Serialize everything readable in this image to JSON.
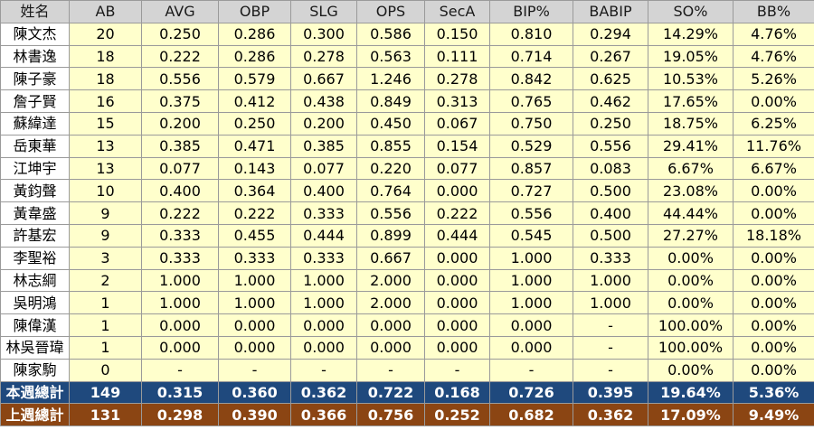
{
  "columns": [
    "姓名",
    "AB",
    "AVG",
    "OBP",
    "SLG",
    "OPS",
    "SecA",
    "BIP%",
    "BABIP",
    "SO%",
    "BB%"
  ],
  "rows": [
    [
      "陳文杰",
      "20",
      "0.250",
      "0.286",
      "0.300",
      "0.586",
      "0.150",
      "0.810",
      "0.294",
      "14.29%",
      "4.76%"
    ],
    [
      "林書逸",
      "18",
      "0.222",
      "0.286",
      "0.278",
      "0.563",
      "0.111",
      "0.714",
      "0.267",
      "19.05%",
      "4.76%"
    ],
    [
      "陳子豪",
      "18",
      "0.556",
      "0.579",
      "0.667",
      "1.246",
      "0.278",
      "0.842",
      "0.625",
      "10.53%",
      "5.26%"
    ],
    [
      "詹子賢",
      "16",
      "0.375",
      "0.412",
      "0.438",
      "0.849",
      "0.313",
      "0.765",
      "0.462",
      "17.65%",
      "0.00%"
    ],
    [
      "蘇緯達",
      "15",
      "0.200",
      "0.250",
      "0.200",
      "0.450",
      "0.067",
      "0.750",
      "0.250",
      "18.75%",
      "6.25%"
    ],
    [
      "岳東華",
      "13",
      "0.385",
      "0.471",
      "0.385",
      "0.855",
      "0.154",
      "0.529",
      "0.556",
      "29.41%",
      "11.76%"
    ],
    [
      "江坤宇",
      "13",
      "0.077",
      "0.143",
      "0.077",
      "0.220",
      "0.077",
      "0.857",
      "0.083",
      "6.67%",
      "6.67%"
    ],
    [
      "黃鈞聲",
      "10",
      "0.400",
      "0.364",
      "0.400",
      "0.764",
      "0.000",
      "0.727",
      "0.500",
      "23.08%",
      "0.00%"
    ],
    [
      "黃韋盛",
      "9",
      "0.222",
      "0.222",
      "0.333",
      "0.556",
      "0.222",
      "0.556",
      "0.400",
      "44.44%",
      "0.00%"
    ],
    [
      "許基宏",
      "9",
      "0.333",
      "0.455",
      "0.444",
      "0.899",
      "0.444",
      "0.545",
      "0.500",
      "27.27%",
      "18.18%"
    ],
    [
      "李聖裕",
      "3",
      "0.333",
      "0.333",
      "0.333",
      "0.667",
      "0.000",
      "1.000",
      "0.333",
      "0.00%",
      "0.00%"
    ],
    [
      "林志綱",
      "2",
      "1.000",
      "1.000",
      "1.000",
      "2.000",
      "0.000",
      "1.000",
      "1.000",
      "0.00%",
      "0.00%"
    ],
    [
      "吳明鴻",
      "1",
      "1.000",
      "1.000",
      "1.000",
      "2.000",
      "0.000",
      "1.000",
      "1.000",
      "0.00%",
      "0.00%"
    ],
    [
      "陳偉漢",
      "1",
      "0.000",
      "0.000",
      "0.000",
      "0.000",
      "0.000",
      "0.000",
      "-",
      "100.00%",
      "0.00%"
    ],
    [
      "林吳晉瑋",
      "1",
      "0.000",
      "0.000",
      "0.000",
      "0.000",
      "0.000",
      "0.000",
      "-",
      "100.00%",
      "0.00%"
    ],
    [
      "陳家駒",
      "0",
      "-",
      "-",
      "-",
      "-",
      "-",
      "-",
      "-",
      "0.00%",
      "0.00%"
    ]
  ],
  "totals": {
    "this_week": [
      "本週總計",
      "149",
      "0.315",
      "0.360",
      "0.362",
      "0.722",
      "0.168",
      "0.726",
      "0.395",
      "19.64%",
      "5.36%"
    ],
    "last_week": [
      "上週總計",
      "131",
      "0.298",
      "0.390",
      "0.366",
      "0.756",
      "0.252",
      "0.682",
      "0.362",
      "17.09%",
      "9.49%"
    ]
  },
  "colors": {
    "header_bg": "#d4d4d4",
    "cell_bg": "#ffffcc",
    "name_bg": "#ffffff",
    "this_week_bg": "#1f497d",
    "last_week_bg": "#8b4513"
  }
}
